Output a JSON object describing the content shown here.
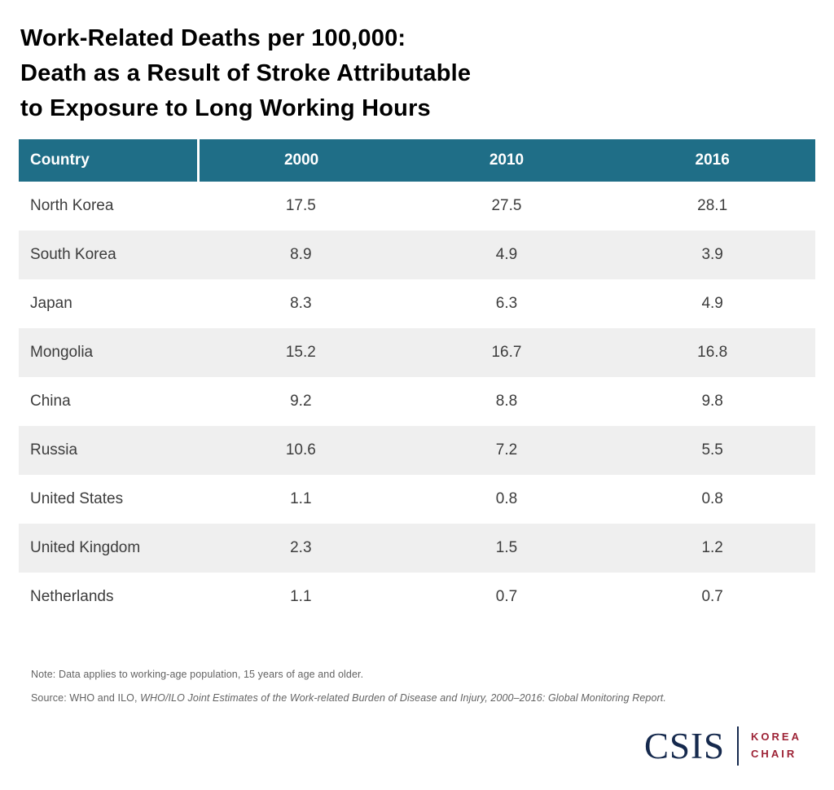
{
  "title": {
    "line1": "Work-Related Deaths per 100,000:",
    "line2": "Death as a Result of Stroke Attributable",
    "line3": "to Exposure to Long Working Hours"
  },
  "table": {
    "columns": [
      "Country",
      "2000",
      "2010",
      "2016"
    ],
    "rows": [
      {
        "country": "North Korea",
        "values": [
          "17.5",
          "27.5",
          "28.1"
        ]
      },
      {
        "country": "South Korea",
        "values": [
          "8.9",
          "4.9",
          "3.9"
        ]
      },
      {
        "country": "Japan",
        "values": [
          "8.3",
          "6.3",
          "4.9"
        ]
      },
      {
        "country": "Mongolia",
        "values": [
          "15.2",
          "16.7",
          "16.8"
        ]
      },
      {
        "country": "China",
        "values": [
          "9.2",
          "8.8",
          "9.8"
        ]
      },
      {
        "country": "Russia",
        "values": [
          "10.6",
          "7.2",
          "5.5"
        ]
      },
      {
        "country": "United States",
        "values": [
          "1.1",
          "0.8",
          "0.8"
        ]
      },
      {
        "country": "United Kingdom",
        "values": [
          "2.3",
          "1.5",
          "1.2"
        ]
      },
      {
        "country": "Netherlands",
        "values": [
          "1.1",
          "0.7",
          "0.7"
        ]
      }
    ]
  },
  "notes": {
    "note": "Note: Data applies to working-age population, 15 years of age and older.",
    "source_prefix": "Source: WHO and ILO, ",
    "source_italic": "WHO/ILO Joint Estimates of the Work-related Burden of Disease and Injury, 2000–2016: Global Monitoring Report."
  },
  "logo": {
    "wordmark": "CSIS",
    "program_line1": "KOREA",
    "program_line2": "CHAIR"
  },
  "colors": {
    "header_bg": "#1F6E87",
    "row_alt": "#EFEFEF",
    "logo_navy": "#15294D",
    "logo_red": "#9D2235"
  },
  "chart_data": {
    "type": "table",
    "title": "Work-Related Deaths per 100,000: Death as a Result of Stroke Attributable to Exposure to Long Working Hours",
    "columns": [
      "Country",
      "2000",
      "2010",
      "2016"
    ],
    "rows": [
      [
        "North Korea",
        17.5,
        27.5,
        28.1
      ],
      [
        "South Korea",
        8.9,
        4.9,
        3.9
      ],
      [
        "Japan",
        8.3,
        6.3,
        4.9
      ],
      [
        "Mongolia",
        15.2,
        16.7,
        16.8
      ],
      [
        "China",
        9.2,
        8.8,
        9.8
      ],
      [
        "Russia",
        10.6,
        7.2,
        5.5
      ],
      [
        "United States",
        1.1,
        0.8,
        0.8
      ],
      [
        "United Kingdom",
        2.3,
        1.5,
        1.2
      ],
      [
        "Netherlands",
        1.1,
        0.7,
        0.7
      ]
    ],
    "note": "Data applies to working-age population, 15 years of age and older.",
    "source": "WHO and ILO, WHO/ILO Joint Estimates of the Work-related Burden of Disease and Injury, 2000–2016: Global Monitoring Report."
  }
}
